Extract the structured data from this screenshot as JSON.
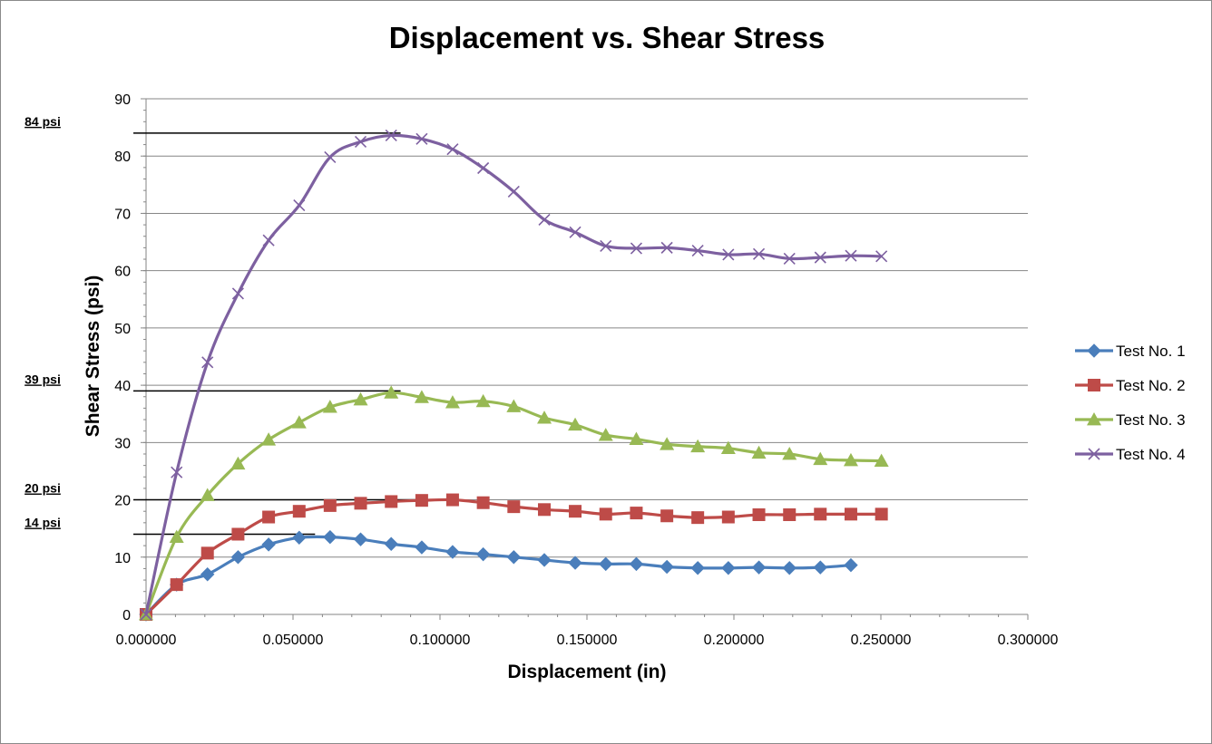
{
  "chart_data": {
    "type": "line",
    "title": "Displacement vs. Shear Stress",
    "xlabel": "Displacement (in)",
    "ylabel": "Shear Stress (psi)",
    "xlim": [
      0,
      0.3
    ],
    "ylim": [
      0,
      90
    ],
    "x_ticks": [
      {
        "value": 0.0,
        "label": "0.000000"
      },
      {
        "value": 0.05,
        "label": "0.050000"
      },
      {
        "value": 0.1,
        "label": "0.100000"
      },
      {
        "value": 0.15,
        "label": "0.150000"
      },
      {
        "value": 0.2,
        "label": "0.200000"
      },
      {
        "value": 0.25,
        "label": "0.250000"
      },
      {
        "value": 0.3,
        "label": "0.300000"
      }
    ],
    "y_ticks": [
      {
        "value": 0,
        "label": "0"
      },
      {
        "value": 10,
        "label": "10"
      },
      {
        "value": 20,
        "label": "20"
      },
      {
        "value": 30,
        "label": "30"
      },
      {
        "value": 40,
        "label": "40"
      },
      {
        "value": 50,
        "label": "50"
      },
      {
        "value": 60,
        "label": "60"
      },
      {
        "value": 70,
        "label": "70"
      },
      {
        "value": 80,
        "label": "80"
      },
      {
        "value": 90,
        "label": "90"
      }
    ],
    "grid": true,
    "legend_position": "right",
    "series": [
      {
        "name": "Test No. 1",
        "color": "#4a7ebb",
        "marker": "diamond",
        "x": [
          0.0,
          0.0104,
          0.0209,
          0.0313,
          0.0417,
          0.0521,
          0.0626,
          0.073,
          0.0834,
          0.0938,
          0.1043,
          0.1147,
          0.1251,
          0.1355,
          0.146,
          0.1564,
          0.1668,
          0.1772,
          0.1877,
          0.1981,
          0.2085,
          0.2189,
          0.2294,
          0.2398
        ],
        "y": [
          0,
          5.2,
          7.0,
          10.0,
          12.2,
          13.4,
          13.5,
          13.1,
          12.3,
          11.7,
          10.9,
          10.5,
          10.0,
          9.5,
          9.0,
          8.8,
          8.8,
          8.3,
          8.1,
          8.1,
          8.2,
          8.1,
          8.2,
          8.6
        ]
      },
      {
        "name": "Test No. 2",
        "color": "#be4b48",
        "marker": "square",
        "x": [
          0.0,
          0.0104,
          0.0209,
          0.0313,
          0.0417,
          0.0521,
          0.0626,
          0.073,
          0.0834,
          0.0938,
          0.1043,
          0.1147,
          0.1251,
          0.1355,
          0.146,
          0.1564,
          0.1668,
          0.1772,
          0.1877,
          0.1981,
          0.2085,
          0.2189,
          0.2294,
          0.2398,
          0.2502
        ],
        "y": [
          0,
          5.2,
          10.7,
          14.0,
          17.0,
          18.0,
          19.0,
          19.4,
          19.7,
          19.9,
          20.0,
          19.5,
          18.8,
          18.3,
          18.0,
          17.5,
          17.7,
          17.2,
          16.9,
          17.0,
          17.4,
          17.4,
          17.5,
          17.5,
          17.5
        ]
      },
      {
        "name": "Test No. 3",
        "color": "#98b954",
        "marker": "triangle",
        "x": [
          0.0,
          0.0104,
          0.0209,
          0.0313,
          0.0417,
          0.0521,
          0.0626,
          0.073,
          0.0834,
          0.0938,
          0.1043,
          0.1147,
          0.1251,
          0.1355,
          0.146,
          0.1564,
          0.1668,
          0.1772,
          0.1877,
          0.1981,
          0.2085,
          0.2189,
          0.2294,
          0.2398,
          0.2502
        ],
        "y": [
          0,
          13.5,
          20.8,
          26.3,
          30.5,
          33.5,
          36.2,
          37.5,
          38.7,
          37.9,
          37.0,
          37.2,
          36.3,
          34.3,
          33.1,
          31.3,
          30.6,
          29.7,
          29.3,
          29.0,
          28.2,
          28.0,
          27.1,
          26.9,
          26.8
        ]
      },
      {
        "name": "Test No. 4",
        "color": "#7d60a0",
        "marker": "x",
        "x": [
          0.0,
          0.0104,
          0.0209,
          0.0313,
          0.0417,
          0.0521,
          0.0626,
          0.073,
          0.0834,
          0.0938,
          0.1043,
          0.1147,
          0.1251,
          0.1355,
          0.146,
          0.1564,
          0.1668,
          0.1772,
          0.1877,
          0.1981,
          0.2085,
          0.2189,
          0.2294,
          0.2398,
          0.2502
        ],
        "y": [
          0,
          24.8,
          44.0,
          56.0,
          65.3,
          71.4,
          79.8,
          82.5,
          83.6,
          83.0,
          81.2,
          77.9,
          73.8,
          68.9,
          66.7,
          64.3,
          63.9,
          64.0,
          63.5,
          62.8,
          62.9,
          62.1,
          62.3,
          62.6,
          62.5
        ]
      }
    ],
    "annotations": [
      {
        "label": "84 psi",
        "value": 84,
        "line_end_x": 0.0866
      },
      {
        "label": "39 psi",
        "value": 39,
        "line_end_x": 0.0866
      },
      {
        "label": "20 psi",
        "value": 20,
        "line_end_x": 0.1001
      },
      {
        "label": "14 psi",
        "value": 14,
        "line_end_x": 0.0575
      }
    ]
  }
}
